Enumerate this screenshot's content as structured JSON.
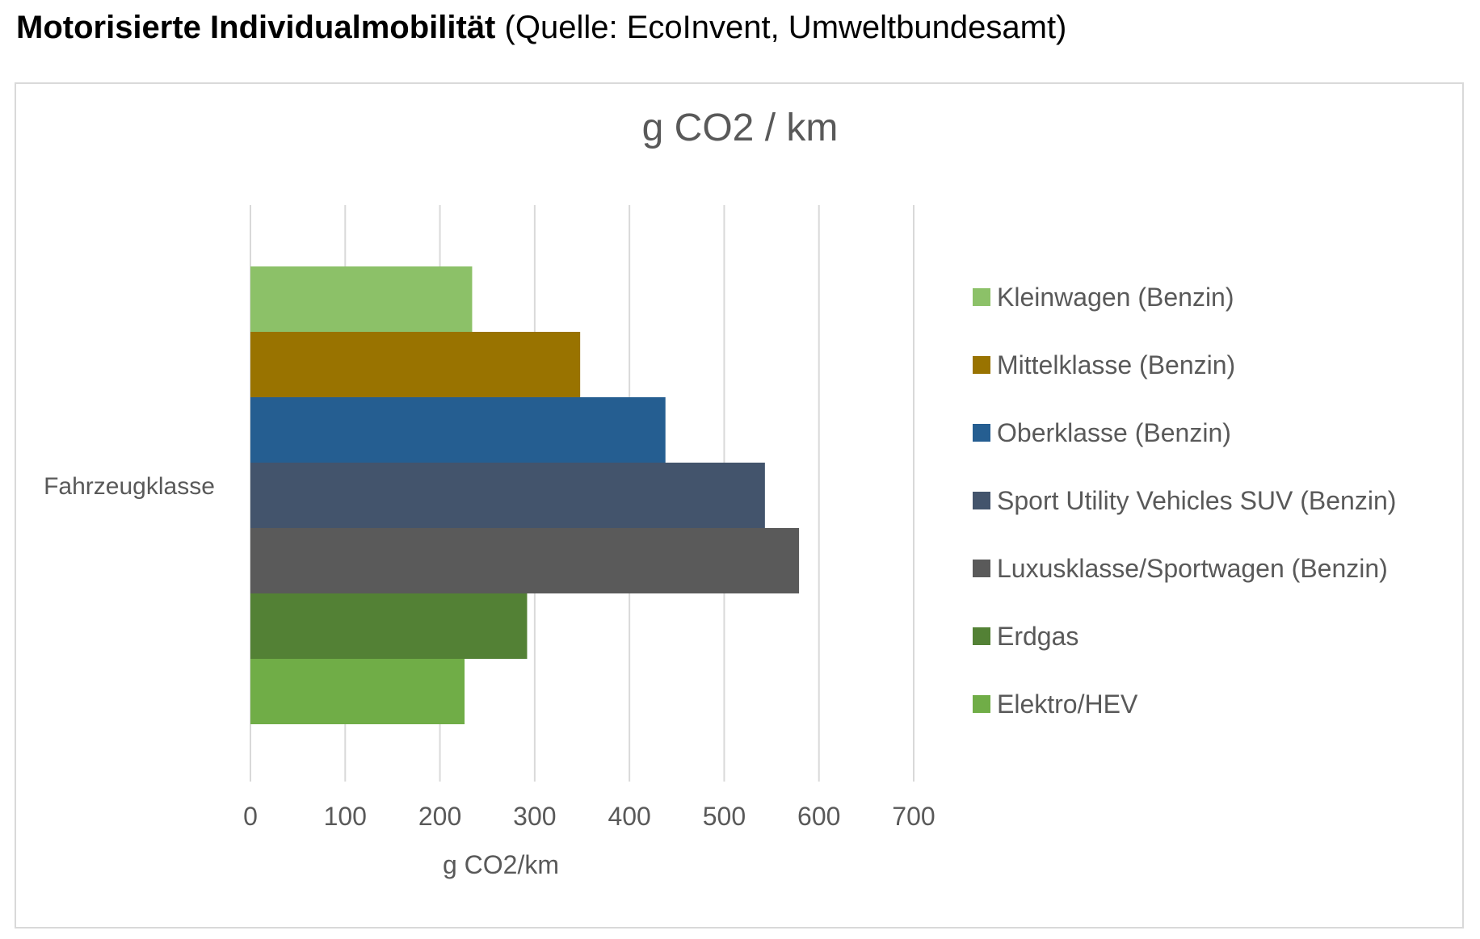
{
  "heading": {
    "main": "Motorisierte Individualmobilität",
    "source": "(Quelle: EcoInvent, Umweltbundesamt)"
  },
  "chart_data": {
    "type": "bar",
    "orientation": "horizontal",
    "title": "g CO2 / km",
    "xlabel": "g CO2/km",
    "ylabel": "",
    "categories": [
      "Fahrzeugklasse"
    ],
    "xlim": [
      0,
      700
    ],
    "x_ticks": [
      0,
      100,
      200,
      300,
      400,
      500,
      600,
      700
    ],
    "grid": true,
    "legend_position": "right",
    "series": [
      {
        "name": "Kleinwagen (Benzin)",
        "values": [
          234
        ],
        "color": "#8cc168"
      },
      {
        "name": "Mittelklasse (Benzin)",
        "values": [
          348
        ],
        "color": "#997300"
      },
      {
        "name": "Oberklasse (Benzin)",
        "values": [
          438
        ],
        "color": "#255e91"
      },
      {
        "name": "Sport Utility Vehicles SUV (Benzin)",
        "values": [
          543
        ],
        "color": "#43546c"
      },
      {
        "name": "Luxusklasse/Sportwagen (Benzin)",
        "values": [
          579
        ],
        "color": "#5a5a5a"
      },
      {
        "name": "Erdgas",
        "values": [
          292
        ],
        "color": "#538135"
      },
      {
        "name": "Elektro/HEV",
        "values": [
          226
        ],
        "color": "#70ad47"
      }
    ]
  }
}
